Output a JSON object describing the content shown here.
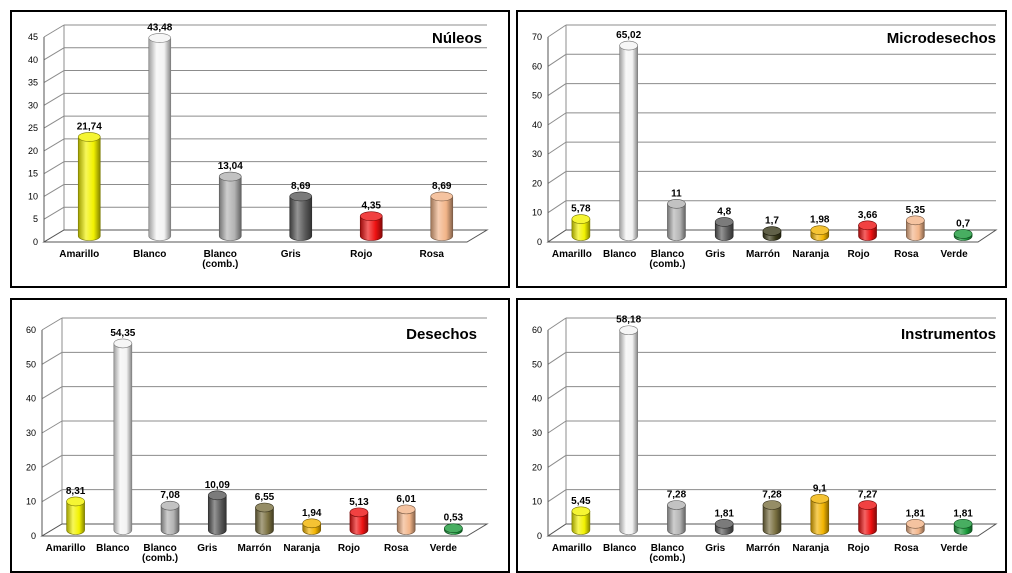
{
  "chart_data": [
    {
      "type": "bar",
      "title": "Núleos",
      "categories": [
        "Amarillo",
        "Blanco",
        "Blanco\n(comb.)",
        "Gris",
        "Rojo",
        "Rosa"
      ],
      "values": [
        21.74,
        43.48,
        13.04,
        8.69,
        4.35,
        8.69
      ],
      "labels": [
        "21,74",
        "43,48",
        "13,04",
        "8,69",
        "4,35",
        "8,69"
      ],
      "colors": [
        "#f2f200",
        "#f4f4f4",
        "#b3b3b3",
        "#5a5a5a",
        "#ee1111",
        "#f2b488"
      ],
      "ylim": [
        0,
        45
      ],
      "yticks": [
        0,
        5,
        10,
        15,
        20,
        25,
        30,
        35,
        40,
        45
      ],
      "grid": true,
      "xlabel": "",
      "ylabel": ""
    },
    {
      "type": "bar",
      "title": "Microdesechos",
      "categories": [
        "Amarillo",
        "Blanco",
        "Blanco\n(comb.)",
        "Gris",
        "Marrón",
        "Naranja",
        "Rojo",
        "Rosa",
        "Verde"
      ],
      "values": [
        5.78,
        65.02,
        11,
        4.8,
        1.7,
        1.98,
        3.66,
        5.35,
        0.7
      ],
      "labels": [
        "5,78",
        "65,02",
        "11",
        "4,8",
        "1,7",
        "1,98",
        "3,66",
        "5,35",
        "0,7"
      ],
      "colors": [
        "#f2f200",
        "#f4f4f4",
        "#b3b3b3",
        "#5a5a5a",
        "#3a3a1a",
        "#f2b400",
        "#ee1111",
        "#f2b488",
        "#1a9a3a"
      ],
      "ylim": [
        0,
        70
      ],
      "yticks": [
        0,
        10,
        20,
        30,
        40,
        50,
        60,
        70
      ],
      "grid": true,
      "xlabel": "",
      "ylabel": ""
    },
    {
      "type": "bar",
      "title": "Desechos",
      "categories": [
        "Amarillo",
        "Blanco",
        "Blanco\n(comb.)",
        "Gris",
        "Marrón",
        "Naranja",
        "Rojo",
        "Rosa",
        "Verde"
      ],
      "values": [
        8.31,
        54.35,
        7.08,
        10.09,
        6.55,
        1.94,
        5.13,
        6.01,
        0.53
      ],
      "labels": [
        "8,31",
        "54,35",
        "7,08",
        "10,09",
        "6,55",
        "1,94",
        "5,13",
        "6,01",
        "0,53"
      ],
      "colors": [
        "#f2f200",
        "#f4f4f4",
        "#b3b3b3",
        "#5a5a5a",
        "#7a7040",
        "#f2b400",
        "#ee1111",
        "#f2b488",
        "#1a9a3a"
      ],
      "ylim": [
        0,
        60
      ],
      "yticks": [
        0,
        10,
        20,
        30,
        40,
        50,
        60
      ],
      "grid": true,
      "xlabel": "",
      "ylabel": ""
    },
    {
      "type": "bar",
      "title": "Instrumentos",
      "categories": [
        "Amarillo",
        "Blanco",
        "Blanco\n(comb.)",
        "Gris",
        "Marrón",
        "Naranja",
        "Rojo",
        "Rosa",
        "Verde"
      ],
      "values": [
        5.45,
        58.18,
        7.28,
        1.81,
        7.28,
        9.1,
        7.27,
        1.81,
        1.81
      ],
      "labels": [
        "5,45",
        "58,18",
        "7,28",
        "1,81",
        "7,28",
        "9,1",
        "7,27",
        "1,81",
        "1,81"
      ],
      "colors": [
        "#f2f200",
        "#f4f4f4",
        "#b3b3b3",
        "#5a5a5a",
        "#7a7040",
        "#f2b400",
        "#ee1111",
        "#f2b488",
        "#1a9a3a"
      ],
      "ylim": [
        0,
        60
      ],
      "yticks": [
        0,
        10,
        20,
        30,
        40,
        50,
        60
      ],
      "grid": true,
      "xlabel": "",
      "ylabel": ""
    }
  ]
}
